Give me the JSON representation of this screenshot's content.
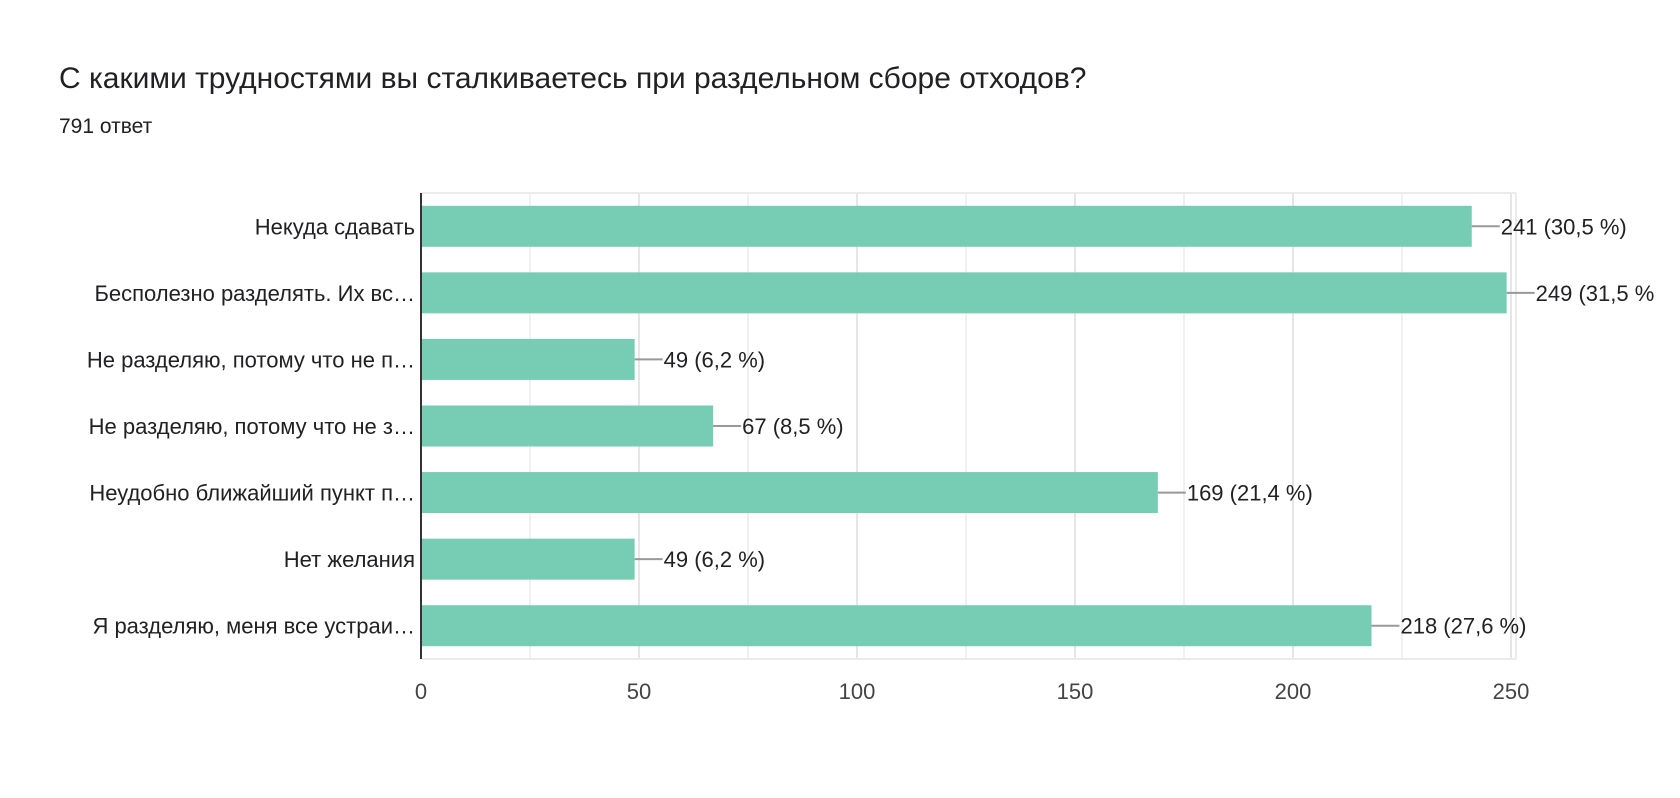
{
  "title": "С какими трудностями вы сталкиваетесь при раздельном сборе отходов?",
  "subtitle": "791 ответ",
  "chart_data": {
    "type": "bar",
    "orientation": "horizontal",
    "categories": [
      "Некуда сдавать",
      "Бесполезно разделять. Их вс…",
      "Не разделяю, потому что не п…",
      "Не разделяю, потому что не з…",
      "Неудобно ближайший пункт п…",
      "Нет желания",
      "Я разделяю, меня все устраи…"
    ],
    "values": [
      241,
      249,
      49,
      67,
      169,
      49,
      218
    ],
    "data_labels": [
      "241 (30,5 %)",
      "249 (31,5 %",
      "49 (6,2 %)",
      "67 (8,5 %)",
      "169 (21,4 %)",
      "49 (6,2 %)",
      "218 (27,6 %)"
    ],
    "xlim": [
      0,
      250
    ],
    "x_ticks": [
      0,
      50,
      100,
      150,
      200,
      250
    ],
    "grid": true,
    "bar_color": "#76cdb4"
  }
}
